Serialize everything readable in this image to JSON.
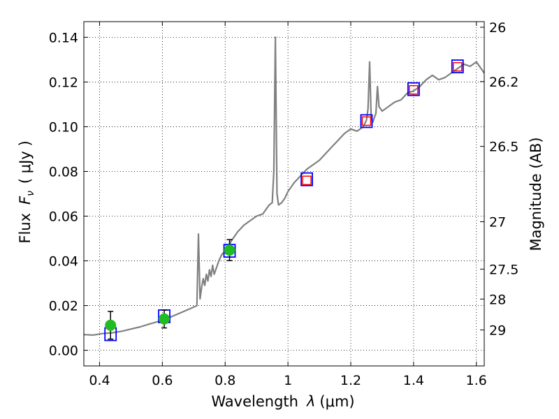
{
  "chart_data": {
    "type": "line",
    "xlabel_main": "Wavelength",
    "xlabel_sym": "λ",
    "xlabel_unit": "(μm)",
    "ylabel_main": "Flux",
    "ylabel_sym": "F",
    "ylabel_sub": "ν",
    "ylabel_unit": "( μJy )",
    "y2label": "Magnitude (AB)",
    "xlim": [
      0.35,
      1.625
    ],
    "ylim": [
      -0.007,
      0.147
    ],
    "xticks": [
      0.4,
      0.6,
      0.8,
      1.0,
      1.2,
      1.4,
      1.6
    ],
    "xtick_labels": [
      "0.4",
      "0.6",
      "0.8",
      "1",
      "1.2",
      "1.4",
      "1.6"
    ],
    "yticks": [
      0.0,
      0.02,
      0.04,
      0.06,
      0.08,
      0.1,
      0.12,
      0.14
    ],
    "ytick_labels": [
      "0.00",
      "0.02",
      "0.04",
      "0.06",
      "0.08",
      "0.10",
      "0.12",
      "0.14"
    ],
    "mag_ticks": [
      {
        "label": "26",
        "flux": 0.1445
      },
      {
        "label": "26.2",
        "flux": 0.1202
      },
      {
        "label": "26.5",
        "flux": 0.0912
      },
      {
        "label": "27",
        "flux": 0.0575
      },
      {
        "label": "27.5",
        "flux": 0.0363
      },
      {
        "label": "28",
        "flux": 0.0229
      },
      {
        "label": "29",
        "flux": 0.0091
      }
    ],
    "grid": true,
    "spectrum": {
      "color": "#808080",
      "x": [
        0.35,
        0.38,
        0.41,
        0.44,
        0.47,
        0.5,
        0.53,
        0.56,
        0.59,
        0.62,
        0.645,
        0.67,
        0.695,
        0.71,
        0.715,
        0.72,
        0.725,
        0.73,
        0.735,
        0.74,
        0.745,
        0.75,
        0.755,
        0.76,
        0.765,
        0.77,
        0.78,
        0.79,
        0.8,
        0.82,
        0.84,
        0.86,
        0.88,
        0.9,
        0.92,
        0.94,
        0.95,
        0.955,
        0.96,
        0.965,
        0.97,
        0.98,
        0.99,
        1.0,
        1.02,
        1.04,
        1.06,
        1.08,
        1.1,
        1.12,
        1.14,
        1.16,
        1.18,
        1.2,
        1.22,
        1.24,
        1.25,
        1.255,
        1.26,
        1.265,
        1.27,
        1.275,
        1.28,
        1.285,
        1.29,
        1.3,
        1.32,
        1.34,
        1.36,
        1.38,
        1.4,
        1.42,
        1.44,
        1.46,
        1.48,
        1.5,
        1.52,
        1.54,
        1.56,
        1.58,
        1.6,
        1.625
      ],
      "y": [
        0.007,
        0.0068,
        0.0075,
        0.0078,
        0.0085,
        0.0095,
        0.0105,
        0.0118,
        0.013,
        0.0145,
        0.016,
        0.0175,
        0.019,
        0.02,
        0.052,
        0.023,
        0.028,
        0.032,
        0.029,
        0.034,
        0.031,
        0.036,
        0.033,
        0.038,
        0.034,
        0.036,
        0.04,
        0.043,
        0.044,
        0.049,
        0.053,
        0.056,
        0.058,
        0.06,
        0.061,
        0.065,
        0.066,
        0.08,
        0.14,
        0.07,
        0.065,
        0.066,
        0.068,
        0.071,
        0.075,
        0.078,
        0.081,
        0.083,
        0.085,
        0.088,
        0.091,
        0.094,
        0.097,
        0.099,
        0.098,
        0.1,
        0.103,
        0.108,
        0.129,
        0.104,
        0.102,
        0.104,
        0.106,
        0.118,
        0.109,
        0.107,
        0.109,
        0.111,
        0.112,
        0.115,
        0.116,
        0.118,
        0.121,
        0.123,
        0.121,
        0.122,
        0.124,
        0.126,
        0.128,
        0.127,
        0.129,
        0.124
      ]
    },
    "filters": [
      {
        "x": 0.435,
        "y": 0.0072
      },
      {
        "x": 0.606,
        "y": 0.0152
      },
      {
        "x": 0.814,
        "y": 0.0445
      },
      {
        "x": 1.06,
        "y": 0.0765
      },
      {
        "x": 1.25,
        "y": 0.1025
      },
      {
        "x": 1.4,
        "y": 0.1168
      },
      {
        "x": 1.54,
        "y": 0.127
      }
    ],
    "model_points": [
      {
        "x": 1.06,
        "y": 0.076
      },
      {
        "x": 1.25,
        "y": 0.1025
      },
      {
        "x": 1.4,
        "y": 0.1165
      },
      {
        "x": 1.54,
        "y": 0.1268
      }
    ],
    "observations": [
      {
        "x": 0.435,
        "y": 0.0112,
        "err": 0.0062
      },
      {
        "x": 0.606,
        "y": 0.014,
        "err": 0.004
      },
      {
        "x": 0.814,
        "y": 0.0448,
        "err": 0.0047
      }
    ],
    "colors": {
      "filter_box": "#0000ff",
      "model_point": "#ff0000",
      "observation": "#22bb22",
      "errorbar": "#000000",
      "grid": "#000000"
    }
  }
}
